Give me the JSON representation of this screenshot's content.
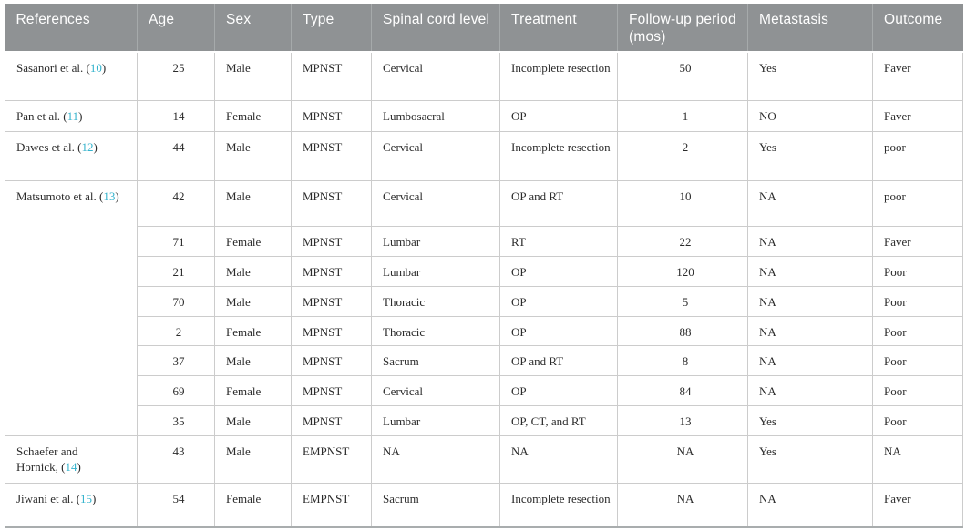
{
  "table": {
    "columns": [
      {
        "key": "references",
        "label": "References"
      },
      {
        "key": "age",
        "label": "Age"
      },
      {
        "key": "sex",
        "label": "Sex"
      },
      {
        "key": "type",
        "label": "Type"
      },
      {
        "key": "spinal-cord-level",
        "label": "Spinal cord level"
      },
      {
        "key": "treatment",
        "label": "Treatment"
      },
      {
        "key": "follow-up-period",
        "label": "Follow-up period (mos)"
      },
      {
        "key": "metastasis",
        "label": "Metastasis"
      },
      {
        "key": "outcome",
        "label": "Outcome"
      }
    ],
    "groups": [
      {
        "ref": {
          "name": "Sasanori et al.",
          "cite": "10"
        },
        "rows": [
          [
            "25",
            "Male",
            "MPNST",
            "Cervical",
            "Incomplete resection",
            "50",
            "Yes",
            "Faver"
          ]
        ]
      },
      {
        "ref": {
          "name": "Pan et al.",
          "cite": "11"
        },
        "rows": [
          [
            "14",
            "Female",
            "MPNST",
            "Lumbosacral",
            "OP",
            "1",
            "NO",
            "Faver"
          ]
        ]
      },
      {
        "ref": {
          "name": "Dawes et al.",
          "cite": "12"
        },
        "rows": [
          [
            "44",
            "Male",
            "MPNST",
            "Cervical",
            "Incomplete resection",
            "2",
            "Yes",
            "poor"
          ]
        ]
      },
      {
        "ref": {
          "name": "Matsumoto et al.",
          "cite": "13"
        },
        "rows": [
          [
            "42",
            "Male",
            "MPNST",
            "Cervical",
            "OP and RT",
            "10",
            "NA",
            "poor"
          ],
          [
            "71",
            "Female",
            "MPNST",
            "Lumbar",
            "RT",
            "22",
            "NA",
            "Faver"
          ],
          [
            "21",
            "Male",
            "MPNST",
            "Lumbar",
            "OP",
            "120",
            "NA",
            "Poor"
          ],
          [
            "70",
            "Male",
            "MPNST",
            "Thoracic",
            "OP",
            "5",
            "NA",
            "Poor"
          ],
          [
            "2",
            "Female",
            "MPNST",
            "Thoracic",
            "OP",
            "88",
            "NA",
            "Poor"
          ],
          [
            "37",
            "Male",
            "MPNST",
            "Sacrum",
            "OP and RT",
            "8",
            "NA",
            "Poor"
          ],
          [
            "69",
            "Female",
            "MPNST",
            "Cervical",
            "OP",
            "84",
            "NA",
            "Poor"
          ],
          [
            "35",
            "Male",
            "MPNST",
            "Lumbar",
            "OP, CT, and RT",
            "13",
            "Yes",
            "Poor"
          ]
        ]
      },
      {
        "ref": {
          "name": "Schaefer and Hornick,",
          "cite": "14"
        },
        "rows": [
          [
            "43",
            "Male",
            "EMPNST",
            "NA",
            "NA",
            "NA",
            "Yes",
            "NA"
          ]
        ]
      },
      {
        "ref": {
          "name": "Jiwani et al.",
          "cite": "15"
        },
        "rows": [
          [
            "54",
            "Female",
            "EMPNST",
            "Sacrum",
            "Incomplete resection",
            "NA",
            "NA",
            "Faver"
          ]
        ]
      }
    ],
    "colors": {
      "header_bg": "#8f9294",
      "header_separator": "#a6aaab",
      "header_text": "#ffffff",
      "body_border": "#cccccc",
      "bottom_border": "#a9adae",
      "body_text": "#2b2b2b",
      "citation": "#34b3cd"
    }
  }
}
